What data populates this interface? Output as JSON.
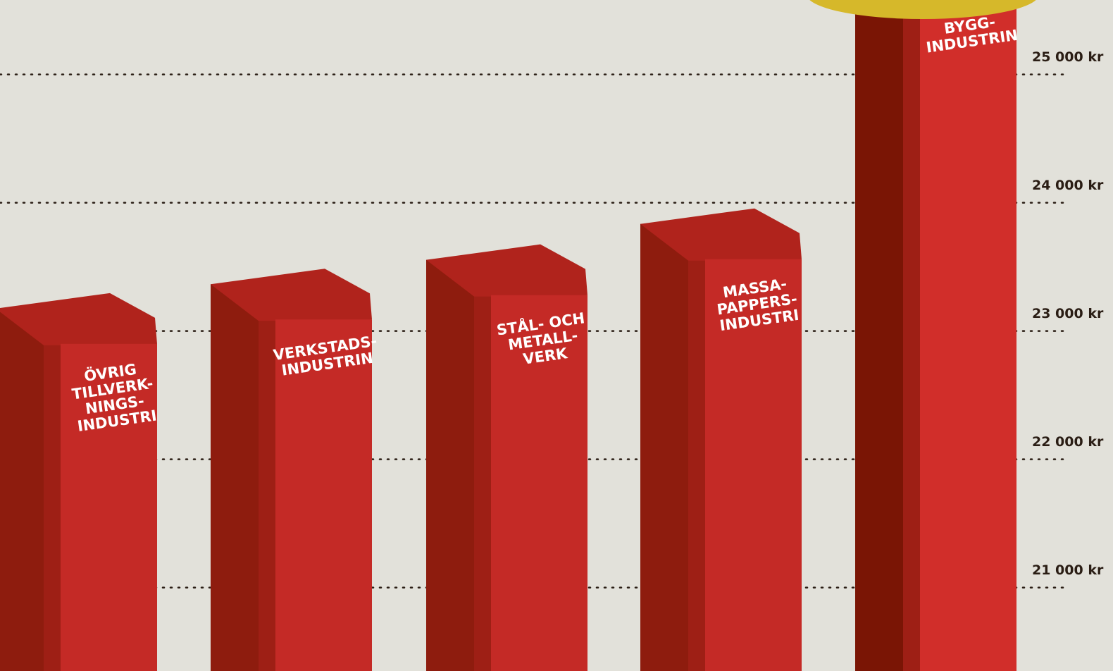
{
  "chart_data": {
    "type": "bar3d",
    "categories": [
      "ÖVRIG\nTILLVERK-\nNINGS-\nINDUSTRI",
      "VERKSTADS-\nINDUSTRIN",
      "STÅL- OCH\nMETALL-\nVERK",
      "MASSA-\nPAPPERS-\nINDUSTRI",
      "BYGG-\nINDUSTRIN"
    ],
    "values": [
      22790,
      22980,
      23170,
      23450,
      25500
    ],
    "color": "#c42a26",
    "ylim": [
      20350,
      25580
    ],
    "yticks": [
      {
        "value": 21000,
        "label": "21 000 kr"
      },
      {
        "value": 22000,
        "label": "22 000 kr"
      },
      {
        "value": 23000,
        "label": "23 000 kr"
      },
      {
        "value": 24000,
        "label": "24 000 kr"
      },
      {
        "value": 25000,
        "label": "25 000 kr"
      }
    ],
    "grid": true
  }
}
